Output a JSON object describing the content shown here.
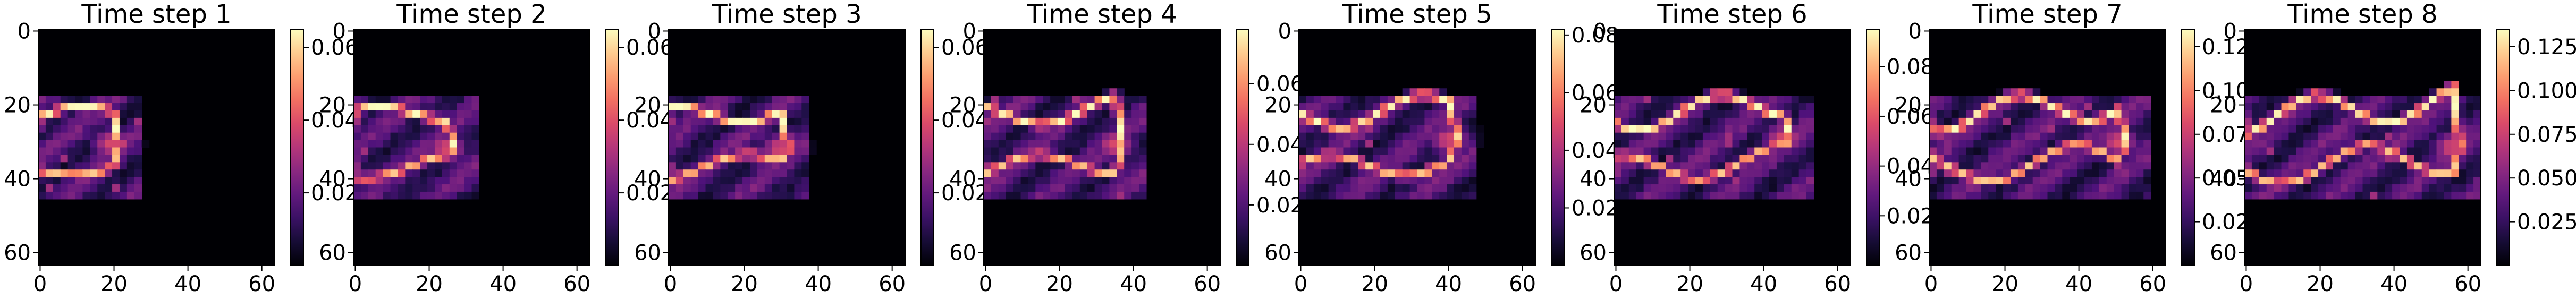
{
  "chart_data": [
    {
      "type": "heatmap",
      "title": "Time step 1",
      "xticks": [
        0,
        20,
        40,
        60
      ],
      "yticks": [
        0,
        20,
        40,
        60
      ],
      "cmap": "magma",
      "vmax": 0.065,
      "colorbar_ticks": [
        "0.02",
        "0.04",
        "0.06"
      ],
      "colorbar_tick_values": [
        0.02,
        0.04,
        0.06
      ]
    },
    {
      "type": "heatmap",
      "title": "Time step 2",
      "xticks": [
        0,
        20,
        40,
        60
      ],
      "yticks": [
        0,
        20,
        40,
        60
      ],
      "cmap": "magma",
      "vmax": 0.065,
      "colorbar_ticks": [
        "0.02",
        "0.04",
        "0.06"
      ],
      "colorbar_tick_values": [
        0.02,
        0.04,
        0.06
      ]
    },
    {
      "type": "heatmap",
      "title": "Time step 3",
      "xticks": [
        0,
        20,
        40,
        60
      ],
      "yticks": [
        0,
        20,
        40,
        60
      ],
      "cmap": "magma",
      "vmax": 0.065,
      "colorbar_ticks": [
        "0.02",
        "0.04",
        "0.06"
      ],
      "colorbar_tick_values": [
        0.02,
        0.04,
        0.06
      ]
    },
    {
      "type": "heatmap",
      "title": "Time step 4",
      "xticks": [
        0,
        20,
        40,
        60
      ],
      "yticks": [
        0,
        20,
        40,
        60
      ],
      "cmap": "magma",
      "vmax": 0.078,
      "colorbar_ticks": [
        "0.02",
        "0.04",
        "0.06"
      ],
      "colorbar_tick_values": [
        0.02,
        0.04,
        0.06
      ]
    },
    {
      "type": "heatmap",
      "title": "Time step 5",
      "xticks": [
        0,
        20,
        40,
        60
      ],
      "yticks": [
        0,
        20,
        40,
        60
      ],
      "cmap": "magma",
      "vmax": 0.082,
      "colorbar_ticks": [
        "0.02",
        "0.04",
        "0.06",
        "0.08"
      ],
      "colorbar_tick_values": [
        0.02,
        0.04,
        0.06,
        0.08
      ]
    },
    {
      "type": "heatmap",
      "title": "Time step 6",
      "xticks": [
        0,
        20,
        40,
        60
      ],
      "yticks": [
        0,
        20,
        40,
        60
      ],
      "cmap": "magma",
      "vmax": 0.095,
      "colorbar_ticks": [
        "0.02",
        "0.04",
        "0.06",
        "0.08"
      ],
      "colorbar_tick_values": [
        0.02,
        0.04,
        0.06,
        0.08
      ]
    },
    {
      "type": "heatmap",
      "title": "Time step 7",
      "xticks": [
        0,
        20,
        40,
        60
      ],
      "yticks": [
        0,
        20,
        40,
        60
      ],
      "cmap": "magma",
      "vmax": 0.135,
      "colorbar_ticks": [
        "0.025",
        "0.050",
        "0.075",
        "0.100",
        "0.125"
      ],
      "colorbar_tick_values": [
        0.025,
        0.05,
        0.075,
        0.1,
        0.125
      ]
    },
    {
      "type": "heatmap",
      "title": "Time step 8",
      "xticks": [
        0,
        20,
        40,
        60
      ],
      "yticks": [
        0,
        20,
        40,
        60
      ],
      "cmap": "magma",
      "vmax": 0.135,
      "colorbar_ticks": [
        "0.025",
        "0.050",
        "0.075",
        "0.100",
        "0.125"
      ],
      "colorbar_tick_values": [
        0.025,
        0.05,
        0.075,
        0.1,
        0.125
      ]
    }
  ]
}
